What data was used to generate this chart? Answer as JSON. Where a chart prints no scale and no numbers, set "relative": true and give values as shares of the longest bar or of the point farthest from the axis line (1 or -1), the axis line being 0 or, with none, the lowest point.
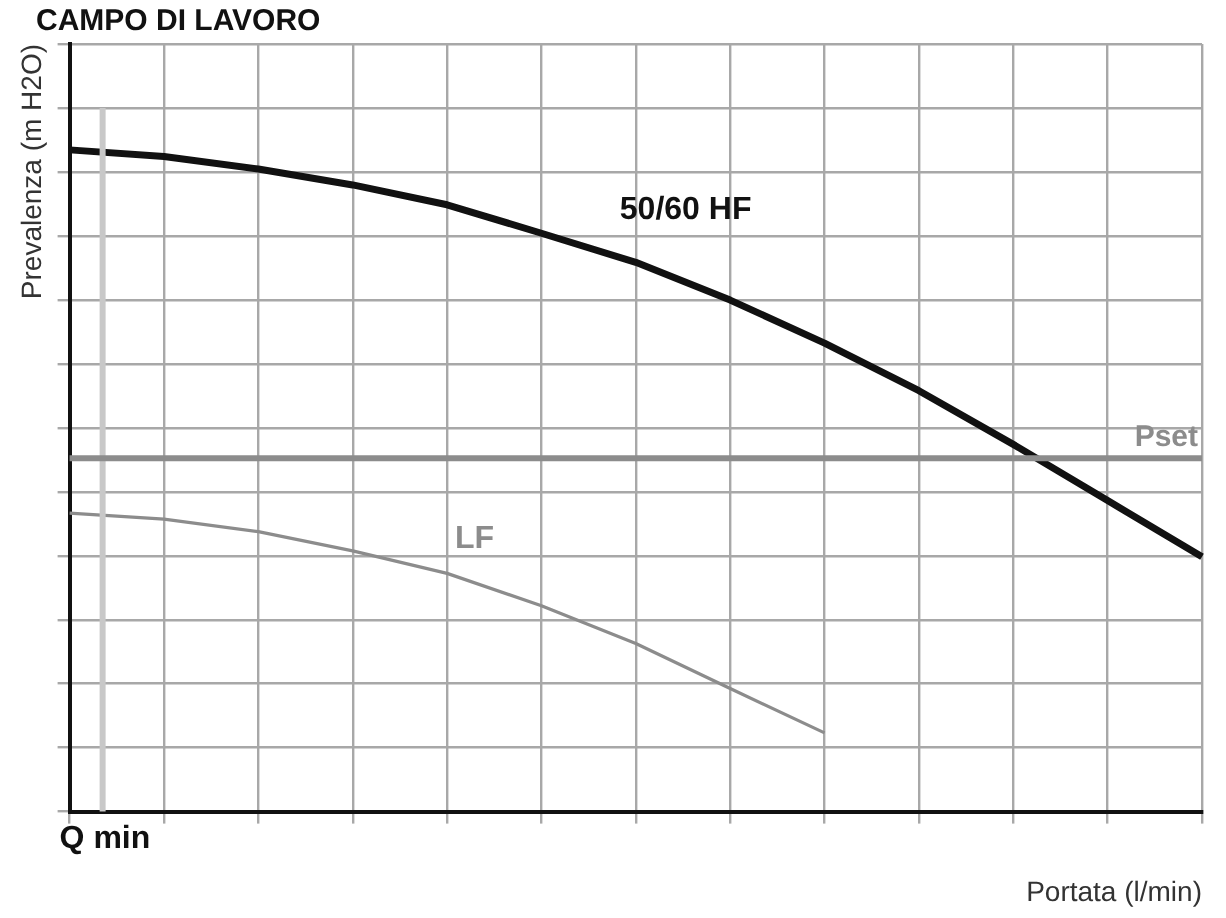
{
  "chart_data": {
    "type": "line",
    "title": "CAMPO DI LAVORO",
    "xlabel": "Portata (l/min)",
    "ylabel": "Prevalenza (m H2O)",
    "relative": true,
    "categories": [
      null,
      null,
      null,
      null,
      null,
      null,
      null,
      null,
      null,
      null,
      null,
      null,
      null
    ],
    "series": [
      {
        "name": "50/60 HF",
        "color": "#111111",
        "values": [
          1,
          0.99,
          0.971,
          0.947,
          0.917,
          0.874,
          0.83,
          0.773,
          0.708,
          0.636,
          0.555,
          0.47,
          0.385
        ]
      },
      {
        "name": "LF",
        "color": "#8c8c8c",
        "values": [
          0.451,
          0.442,
          0.423,
          0.394,
          0.36,
          0.311,
          0.254,
          0.186,
          0.119,
          null,
          null,
          null,
          null
        ]
      }
    ],
    "ref_lines": [
      {
        "axis": "y",
        "value": 0.534,
        "label": "Pset",
        "color": "#8c8c8c"
      }
    ],
    "annotations": [
      "Q min"
    ],
    "grid": true,
    "legend": false,
    "marker": "none",
    "line_style": "solid"
  }
}
